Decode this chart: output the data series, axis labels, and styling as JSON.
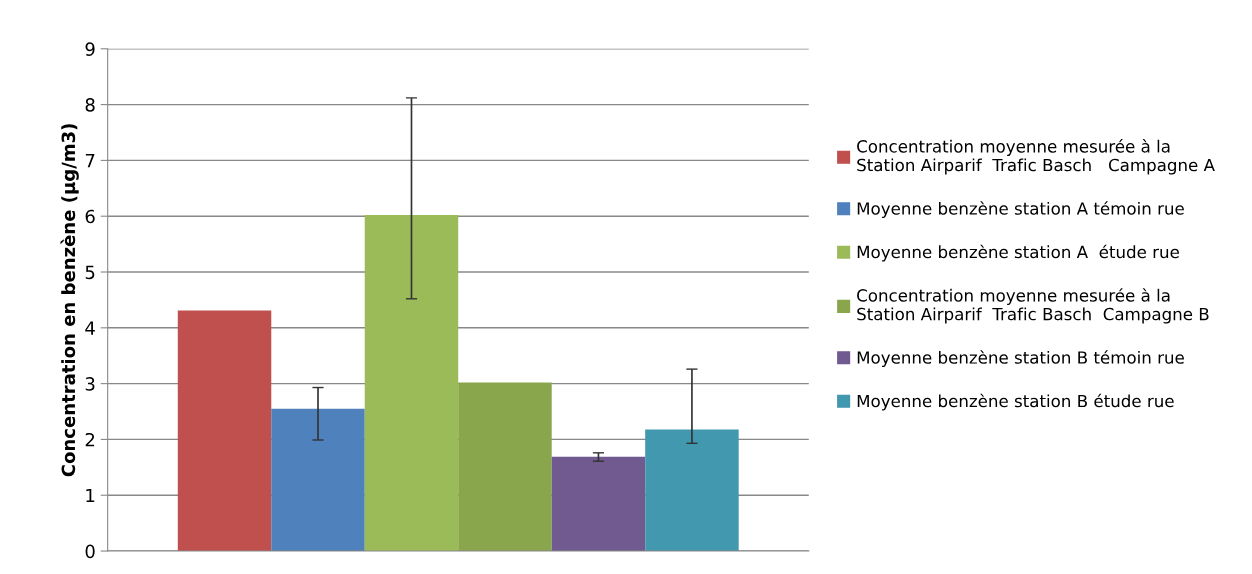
{
  "chart_data": {
    "type": "bar",
    "ylabel": "Concentration en benzène (µg/m3)",
    "categories": [
      null
    ],
    "series": [
      {
        "name": "Concentration moyenne mesurée à la\nStation Airparif  Trafic Basch   Campagne A",
        "color": "#c0504d",
        "values": [
          4.31
        ]
      },
      {
        "name": "Moyenne benzène station A témoin rue",
        "color": "#4f81bd",
        "values": [
          2.55
        ],
        "errors": [
          [
            1.99,
            2.93
          ]
        ]
      },
      {
        "name": "Moyenne benzène station A  étude rue",
        "color": "#9bbb59",
        "values": [
          6.02
        ],
        "errors": [
          [
            4.52,
            8.12
          ]
        ]
      },
      {
        "name": "Concentration moyenne mesurée à la\nStation Airparif  Trafic Basch  Campagne B",
        "color": "#8aa64c",
        "values": [
          3.02
        ]
      },
      {
        "name": "Moyenne benzène station B témoin rue",
        "color": "#715a8f",
        "values": [
          1.69
        ],
        "errors": [
          [
            1.61,
            1.76
          ]
        ]
      },
      {
        "name": "Moyenne benzène station B étude rue",
        "color": "#4198af",
        "values": [
          2.18
        ],
        "errors": [
          [
            1.93,
            3.26
          ]
        ]
      }
    ],
    "ylim": [
      0,
      9
    ],
    "yticks": [
      0,
      1,
      2,
      3,
      4,
      5,
      6,
      7,
      8,
      9
    ],
    "grid": "y",
    "legend": "right"
  }
}
